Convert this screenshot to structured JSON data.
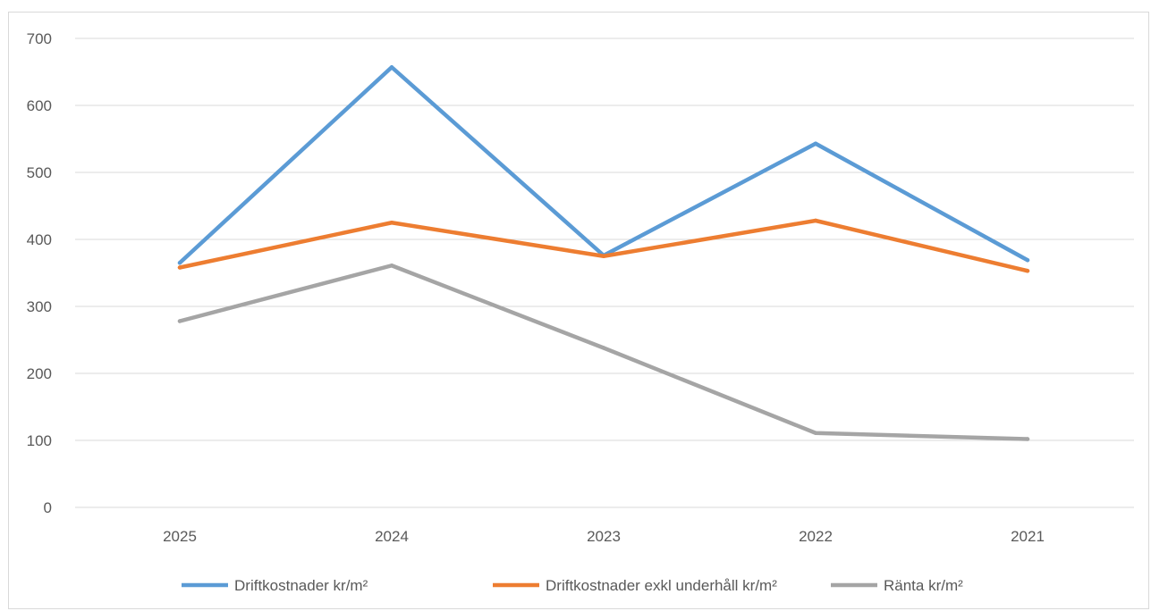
{
  "chart_data": {
    "type": "line",
    "title": "",
    "xlabel": "",
    "ylabel": "",
    "categories": [
      "2025",
      "2024",
      "2023",
      "2022",
      "2021"
    ],
    "ylim": [
      0,
      700
    ],
    "yticks": [
      0,
      100,
      200,
      300,
      400,
      500,
      600,
      700
    ],
    "grid": true,
    "legend_position": "bottom",
    "series": [
      {
        "name": "Driftkostnader kr/m²",
        "color": "#5b9bd5",
        "values": [
          365,
          657,
          376,
          543,
          369
        ]
      },
      {
        "name": "Driftkostnader exkl underhåll kr/m²",
        "color": "#ed7d31",
        "values": [
          358,
          425,
          375,
          428,
          353
        ]
      },
      {
        "name": "Ränta kr/m²",
        "color": "#a5a5a5",
        "values": [
          278,
          361,
          238,
          111,
          102
        ]
      }
    ]
  }
}
